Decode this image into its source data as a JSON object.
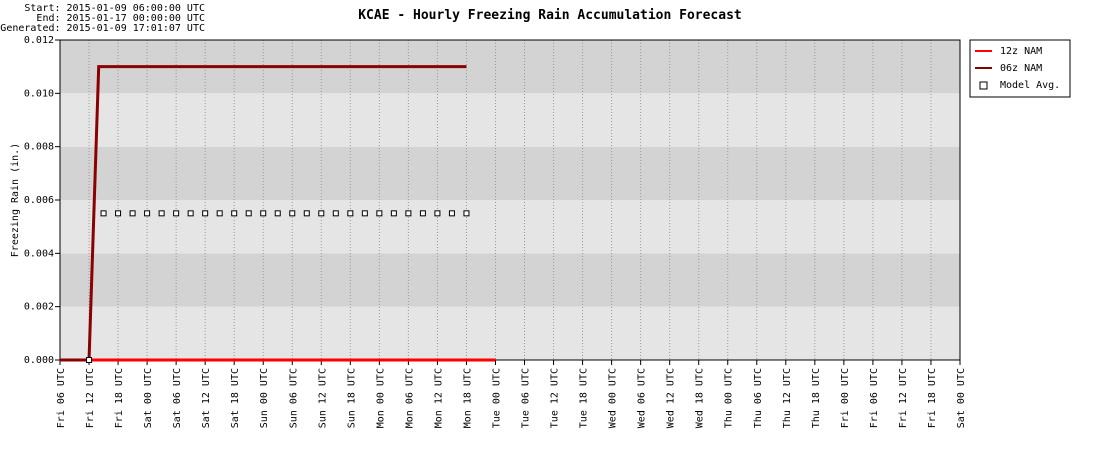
{
  "chart_data": {
    "type": "line",
    "title": "KCAE - Hourly Freezing Rain Accumulation Forecast",
    "header": [
      "Start: 2015-01-09 06:00:00 UTC",
      "End: 2015-01-17 00:00:00 UTC",
      "Generated: 2015-01-09 17:01:07 UTC"
    ],
    "y_label": "Freezing Rain (in.)",
    "xlim": [
      0,
      186
    ],
    "xticks": [
      {
        "value": 0,
        "label": "Fri 06 UTC"
      },
      {
        "value": 6,
        "label": "Fri 12 UTC"
      },
      {
        "value": 12,
        "label": "Fri 18 UTC"
      },
      {
        "value": 18,
        "label": "Sat 00 UTC"
      },
      {
        "value": 24,
        "label": "Sat 06 UTC"
      },
      {
        "value": 30,
        "label": "Sat 12 UTC"
      },
      {
        "value": 36,
        "label": "Sat 18 UTC"
      },
      {
        "value": 42,
        "label": "Sun 00 UTC"
      },
      {
        "value": 48,
        "label": "Sun 06 UTC"
      },
      {
        "value": 54,
        "label": "Sun 12 UTC"
      },
      {
        "value": 60,
        "label": "Sun 18 UTC"
      },
      {
        "value": 66,
        "label": "Mon 00 UTC"
      },
      {
        "value": 72,
        "label": "Mon 06 UTC"
      },
      {
        "value": 78,
        "label": "Mon 12 UTC"
      },
      {
        "value": 84,
        "label": "Mon 18 UTC"
      },
      {
        "value": 90,
        "label": "Tue 00 UTC"
      },
      {
        "value": 96,
        "label": "Tue 06 UTC"
      },
      {
        "value": 102,
        "label": "Tue 12 UTC"
      },
      {
        "value": 108,
        "label": "Tue 18 UTC"
      },
      {
        "value": 114,
        "label": "Wed 00 UTC"
      },
      {
        "value": 120,
        "label": "Wed 06 UTC"
      },
      {
        "value": 126,
        "label": "Wed 12 UTC"
      },
      {
        "value": 132,
        "label": "Wed 18 UTC"
      },
      {
        "value": 138,
        "label": "Thu 00 UTC"
      },
      {
        "value": 144,
        "label": "Thu 06 UTC"
      },
      {
        "value": 150,
        "label": "Thu 12 UTC"
      },
      {
        "value": 156,
        "label": "Thu 18 UTC"
      },
      {
        "value": 162,
        "label": "Fri 00 UTC"
      },
      {
        "value": 168,
        "label": "Fri 06 UTC"
      },
      {
        "value": 174,
        "label": "Fri 12 UTC"
      },
      {
        "value": 180,
        "label": "Fri 18 UTC"
      },
      {
        "value": 186,
        "label": "Sat 00 UTC"
      }
    ],
    "ylim": [
      0,
      0.012
    ],
    "yticks": [
      {
        "value": 0,
        "label": "0.000"
      },
      {
        "value": 0.002,
        "label": "0.002"
      },
      {
        "value": 0.004,
        "label": "0.004"
      },
      {
        "value": 0.006,
        "label": "0.006"
      },
      {
        "value": 0.008,
        "label": "0.008"
      },
      {
        "value": 0.01,
        "label": "0.010"
      },
      {
        "value": 0.012,
        "label": "0.012"
      }
    ],
    "grid": true,
    "legend": "outside-right",
    "series": [
      {
        "name": "12z NAM",
        "color": "#ff0000",
        "marker": "none",
        "x": [
          0,
          90
        ],
        "values": [
          0,
          0
        ]
      },
      {
        "name": "06z NAM",
        "color": "#8b0000",
        "marker": "none",
        "x": [
          0,
          6,
          8,
          84
        ],
        "values": [
          0,
          0,
          0.011,
          0.011
        ]
      },
      {
        "name": "Model Avg.",
        "color": "#000000",
        "marker": "square",
        "x": [
          6,
          9,
          12,
          15,
          18,
          21,
          24,
          27,
          30,
          33,
          36,
          39,
          42,
          45,
          48,
          51,
          54,
          57,
          60,
          63,
          66,
          69,
          72,
          75,
          78,
          81,
          84
        ],
        "values": [
          0,
          0.0055,
          0.0055,
          0.0055,
          0.0055,
          0.0055,
          0.0055,
          0.0055,
          0.0055,
          0.0055,
          0.0055,
          0.0055,
          0.0055,
          0.0055,
          0.0055,
          0.0055,
          0.0055,
          0.0055,
          0.0055,
          0.0055,
          0.0055,
          0.0055,
          0.0055,
          0.0055,
          0.0055,
          0.0055,
          0.0055
        ]
      }
    ]
  }
}
